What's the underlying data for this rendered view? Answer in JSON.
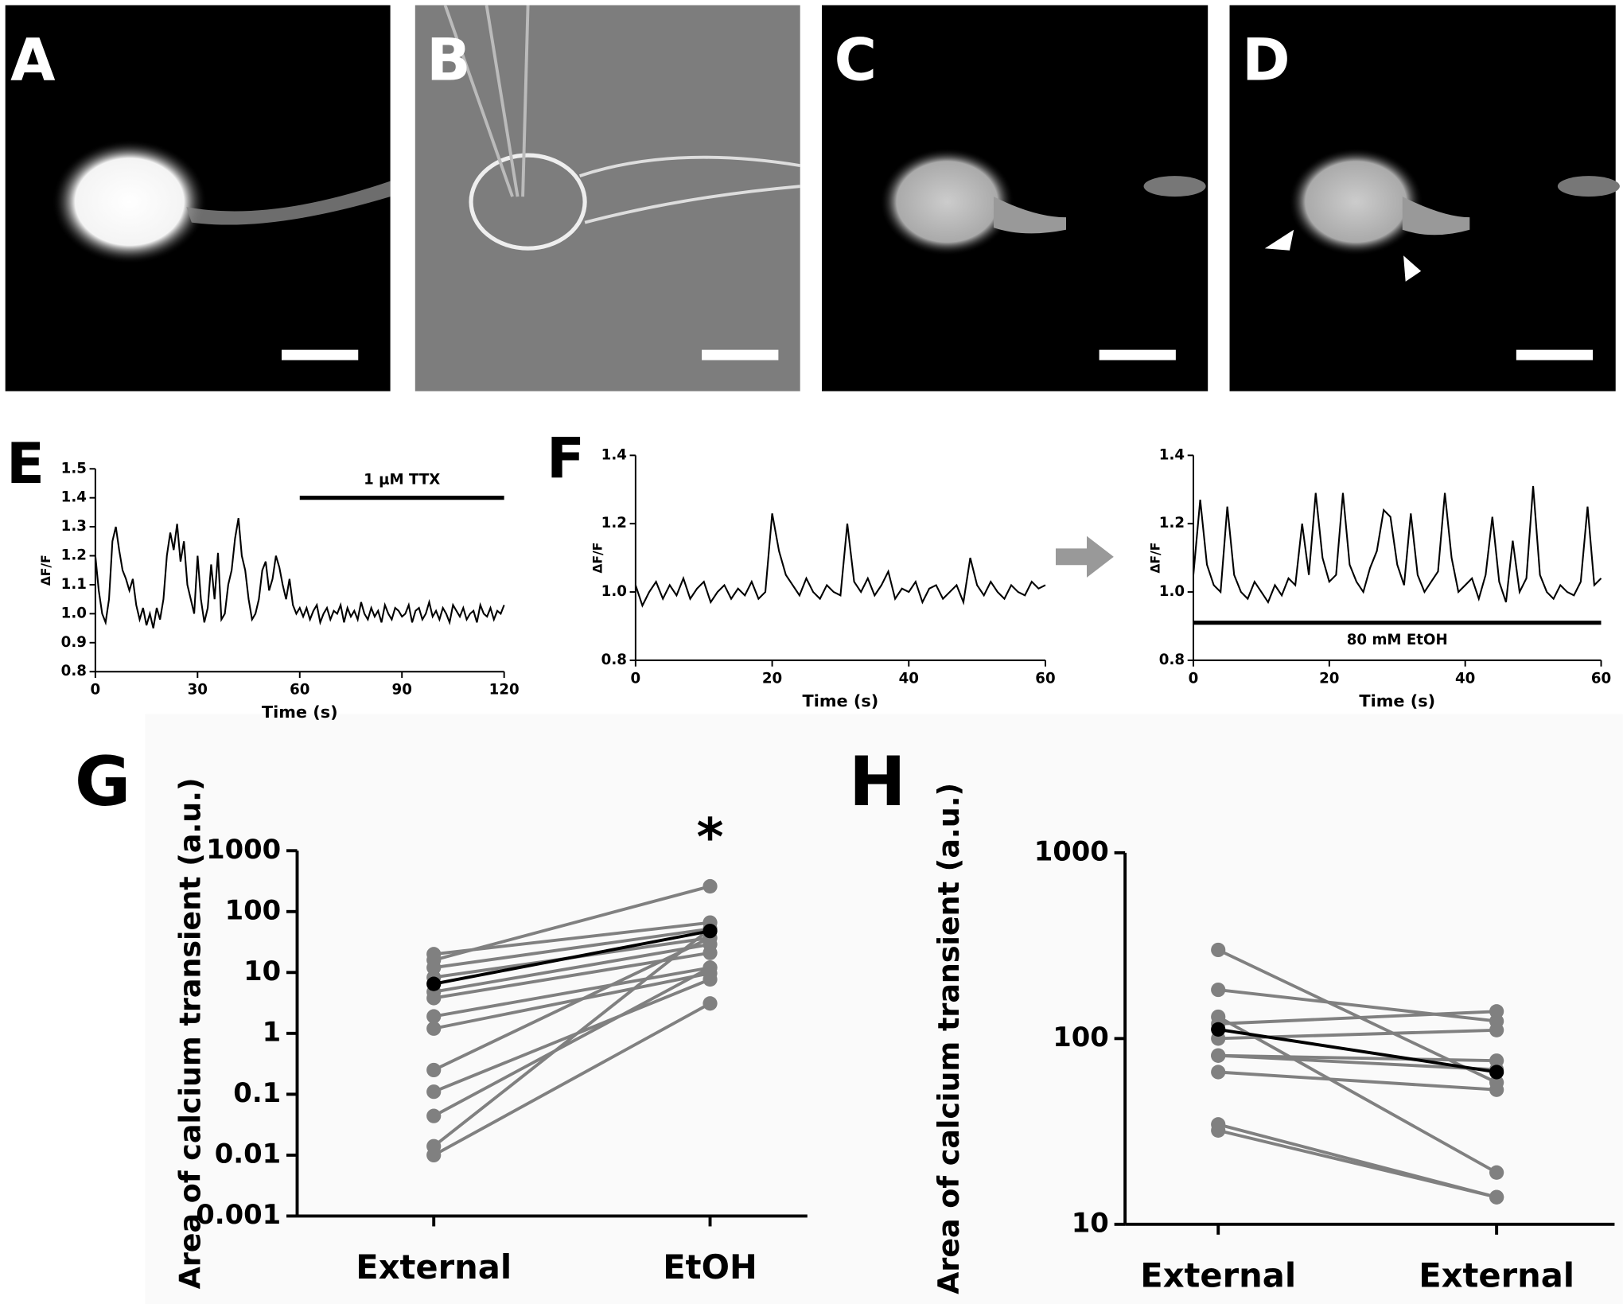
{
  "image_panels": [
    {
      "panel_label": "A"
    },
    {
      "panel_label": "B"
    },
    {
      "panel_label": "C"
    },
    {
      "panel_label": "D"
    }
  ],
  "chart_data": [
    {
      "type": "line",
      "panel_label": "E",
      "y_label": "ΔF/F",
      "x_label": "Time (s)",
      "color": "#000000",
      "xlim": [
        0,
        120
      ],
      "xticks": [
        0,
        30,
        60,
        90,
        120
      ],
      "ylim": [
        0.8,
        1.5
      ],
      "yticks": [
        0.8,
        0.9,
        {
          "value": 1.0,
          "label": "1.0"
        },
        1.1,
        1.2,
        1.3,
        1.4,
        1.5
      ],
      "annotations": [
        {
          "text": "1 μM TTX",
          "x": [
            60,
            120
          ],
          "y": 1.4
        }
      ],
      "x": [
        0,
        1,
        2,
        3,
        4,
        5,
        6,
        7,
        8,
        9,
        10,
        11,
        12,
        13,
        14,
        15,
        16,
        17,
        18,
        19,
        20,
        21,
        22,
        23,
        24,
        25,
        26,
        27,
        28,
        29,
        30,
        31,
        32,
        33,
        34,
        35,
        36,
        37,
        38,
        39,
        40,
        41,
        42,
        43,
        44,
        45,
        46,
        47,
        48,
        49,
        50,
        51,
        52,
        53,
        54,
        55,
        56,
        57,
        58,
        59,
        60,
        61,
        62,
        63,
        64,
        65,
        66,
        67,
        68,
        69,
        70,
        71,
        72,
        73,
        74,
        75,
        76,
        77,
        78,
        79,
        80,
        81,
        82,
        83,
        84,
        85,
        86,
        87,
        88,
        89,
        90,
        91,
        92,
        93,
        94,
        95,
        96,
        97,
        98,
        99,
        100,
        101,
        102,
        103,
        104,
        105,
        106,
        107,
        108,
        109,
        110,
        111,
        112,
        113,
        114,
        115,
        116,
        117,
        118,
        119,
        120
      ],
      "values": [
        1.2,
        1.08,
        1.0,
        0.97,
        1.05,
        1.25,
        1.3,
        1.22,
        1.15,
        1.12,
        1.08,
        1.12,
        1.03,
        0.98,
        1.02,
        0.96,
        1.0,
        0.95,
        1.02,
        0.98,
        1.05,
        1.2,
        1.28,
        1.22,
        1.31,
        1.18,
        1.25,
        1.1,
        1.05,
        1.0,
        1.2,
        1.05,
        0.97,
        1.02,
        1.17,
        1.05,
        1.21,
        0.98,
        1.0,
        1.1,
        1.15,
        1.26,
        1.33,
        1.2,
        1.15,
        1.05,
        0.98,
        1.0,
        1.05,
        1.15,
        1.18,
        1.08,
        1.12,
        1.2,
        1.16,
        1.1,
        1.05,
        1.12,
        1.03,
        1.0,
        1.02,
        0.99,
        1.02,
        0.98,
        1.01,
        1.03,
        0.97,
        1.0,
        1.02,
        0.98,
        1.01,
        1.0,
        1.03,
        0.97,
        1.02,
        0.99,
        1.01,
        0.98,
        1.04,
        1.0,
        0.98,
        1.02,
        0.99,
        1.01,
        0.97,
        1.03,
        1.0,
        0.98,
        1.02,
        1.01,
        0.99,
        1.0,
        1.03,
        0.97,
        1.01,
        1.02,
        0.98,
        1.0,
        1.04,
        0.99,
        1.01,
        0.98,
        1.02,
        1.0,
        0.97,
        1.03,
        1.01,
        0.99,
        1.02,
        0.98,
        1.0,
        1.01,
        0.97,
        1.03,
        1.0,
        0.99,
        1.02,
        0.98,
        1.01,
        1.0,
        1.03
      ]
    },
    {
      "type": "line",
      "panel_label": "F",
      "y_label": "ΔF/F",
      "x_label": "Time (s)",
      "color": "#000000",
      "xlim": [
        0,
        60
      ],
      "xticks": [
        0,
        20,
        40,
        60
      ],
      "ylim": [
        0.8,
        1.4
      ],
      "yticks": [
        0.8,
        {
          "value": 1.0,
          "label": "1.0"
        },
        1.2,
        1.4
      ],
      "x": [
        0,
        1,
        2,
        3,
        4,
        5,
        6,
        7,
        8,
        9,
        10,
        11,
        12,
        13,
        14,
        15,
        16,
        17,
        18,
        19,
        20,
        21,
        22,
        23,
        24,
        25,
        26,
        27,
        28,
        29,
        30,
        31,
        32,
        33,
        34,
        35,
        36,
        37,
        38,
        39,
        40,
        41,
        42,
        43,
        44,
        45,
        46,
        47,
        48,
        49,
        50,
        51,
        52,
        53,
        54,
        55,
        56,
        57,
        58,
        59,
        60
      ],
      "values": [
        1.02,
        0.96,
        1.0,
        1.03,
        0.98,
        1.02,
        0.99,
        1.04,
        0.98,
        1.01,
        1.03,
        0.97,
        1.0,
        1.02,
        0.98,
        1.01,
        0.99,
        1.03,
        0.98,
        1.0,
        1.23,
        1.12,
        1.05,
        1.02,
        0.99,
        1.04,
        1.0,
        0.98,
        1.02,
        1.0,
        0.99,
        1.2,
        1.03,
        1.0,
        1.04,
        0.99,
        1.02,
        1.06,
        0.98,
        1.01,
        1.0,
        1.03,
        0.97,
        1.01,
        1.02,
        0.98,
        1.0,
        1.02,
        0.97,
        1.1,
        1.02,
        0.99,
        1.03,
        1.0,
        0.98,
        1.02,
        1.0,
        0.99,
        1.03,
        1.01,
        1.02
      ]
    },
    {
      "type": "line",
      "y_label": "ΔF/F",
      "x_label": "Time (s)",
      "color": "#000000",
      "xlim": [
        0,
        60
      ],
      "xticks": [
        0,
        20,
        40,
        60
      ],
      "ylim": [
        0.8,
        1.4
      ],
      "yticks": [
        0.8,
        {
          "value": 1.0,
          "label": "1.0"
        },
        1.2,
        1.4
      ],
      "annotations": [
        {
          "text": "80 mM EtOH",
          "x": [
            0,
            60
          ],
          "y": 0.91
        }
      ],
      "x": [
        0,
        1,
        2,
        3,
        4,
        5,
        6,
        7,
        8,
        9,
        10,
        11,
        12,
        13,
        14,
        15,
        16,
        17,
        18,
        19,
        20,
        21,
        22,
        23,
        24,
        25,
        26,
        27,
        28,
        29,
        30,
        31,
        32,
        33,
        34,
        35,
        36,
        37,
        38,
        39,
        40,
        41,
        42,
        43,
        44,
        45,
        46,
        47,
        48,
        49,
        50,
        51,
        52,
        53,
        54,
        55,
        56,
        57,
        58,
        59,
        60
      ],
      "values": [
        1.05,
        1.27,
        1.08,
        1.02,
        1.0,
        1.25,
        1.05,
        1.0,
        0.98,
        1.03,
        1.0,
        0.97,
        1.02,
        0.99,
        1.04,
        1.02,
        1.2,
        1.05,
        1.29,
        1.1,
        1.03,
        1.05,
        1.29,
        1.08,
        1.03,
        1.0,
        1.07,
        1.12,
        1.24,
        1.22,
        1.08,
        1.02,
        1.23,
        1.05,
        1.0,
        1.03,
        1.06,
        1.29,
        1.1,
        1.0,
        1.02,
        1.04,
        0.98,
        1.05,
        1.22,
        1.03,
        0.97,
        1.15,
        1.0,
        1.04,
        1.31,
        1.05,
        1.0,
        0.98,
        1.02,
        1.0,
        0.99,
        1.03,
        1.25,
        1.02,
        1.04
      ]
    },
    {
      "type": "line",
      "panel_label": "G",
      "y_label": "Area of calcium transient (a.u.)",
      "log_scale": true,
      "markers": true,
      "categories": [
        "External",
        "EtOH"
      ],
      "ylim": [
        0.001,
        1000
      ],
      "yticks": [
        0.001,
        0.01,
        0.1,
        1,
        10,
        100,
        1000
      ],
      "annotations": [
        {
          "text": "*"
        }
      ],
      "series": [
        {
          "color": "#808080",
          "values": [
            20,
            66
          ]
        },
        {
          "color": "#808080",
          "values": [
            16,
            260
          ]
        },
        {
          "color": "#808080",
          "values": [
            12,
            52
          ]
        },
        {
          "color": "#808080",
          "values": [
            8.3,
            37
          ]
        },
        {
          "color": "#808080",
          "values": [
            4.8,
            29
          ]
        },
        {
          "color": "#808080",
          "values": [
            3.8,
            21
          ]
        },
        {
          "color": "#808080",
          "values": [
            1.9,
            12
          ]
        },
        {
          "color": "#808080",
          "values": [
            1.2,
            9.7
          ]
        },
        {
          "color": "#808080",
          "values": [
            0.25,
            37
          ]
        },
        {
          "color": "#808080",
          "values": [
            0.11,
            7.7
          ]
        },
        {
          "color": "#808080",
          "values": [
            0.044,
            12
          ]
        },
        {
          "color": "#808080",
          "values": [
            0.014,
            52
          ]
        },
        {
          "color": "#808080",
          "values": [
            0.01,
            3.1
          ]
        },
        {
          "color": "#000000",
          "values": [
            6.5,
            48
          ]
        }
      ]
    },
    {
      "type": "line",
      "panel_label": "H",
      "y_label": "Area of calcium transient (a.u.)",
      "log_scale": true,
      "markers": true,
      "categories": [
        "External",
        "External"
      ],
      "ylim": [
        10,
        1000
      ],
      "yticks": [
        10,
        100,
        1000
      ],
      "series": [
        {
          "color": "#808080",
          "values": [
            300,
            58
          ]
        },
        {
          "color": "#808080",
          "values": [
            183,
            124
          ]
        },
        {
          "color": "#808080",
          "values": [
            131,
            19
          ]
        },
        {
          "color": "#808080",
          "values": [
            120,
            140
          ]
        },
        {
          "color": "#808080",
          "values": [
            100,
            111
          ]
        },
        {
          "color": "#808080",
          "values": [
            81,
            76
          ]
        },
        {
          "color": "#808080",
          "values": [
            81,
            68
          ]
        },
        {
          "color": "#808080",
          "values": [
            66,
            53
          ]
        },
        {
          "color": "#808080",
          "values": [
            34.5,
            14
          ]
        },
        {
          "color": "#808080",
          "values": [
            32,
            14
          ]
        },
        {
          "color": "#000000",
          "values": [
            112,
            66
          ]
        }
      ]
    }
  ]
}
